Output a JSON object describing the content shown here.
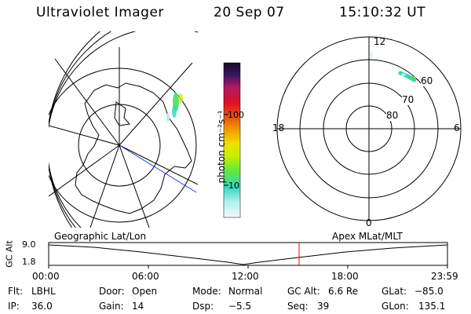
{
  "header": {
    "title": "Ultraviolet Imager",
    "date": "20 Sep 07",
    "time": "15:10:32 UT"
  },
  "colorbar": {
    "label": "photon cm⁻²s⁻¹",
    "ticks": [
      "100",
      "10"
    ],
    "colors": [
      "#1a0a2a",
      "#3a1660",
      "#b01860",
      "#e01020",
      "#e85a10",
      "#f0a000",
      "#f0e000",
      "#c8f000",
      "#60e840",
      "#30d8b8",
      "#b0f0f0",
      "#f4f8f8"
    ]
  },
  "polar_plot": {
    "mlt_labels": [
      "12",
      "6",
      "0",
      "18"
    ],
    "mlat_labels": [
      "60",
      "70",
      "80"
    ]
  },
  "timeline": {
    "left_label": "Geographic Lat/Lon",
    "right_label": "Apex MLat/MLT",
    "axis_label": "GC Alt",
    "ytick_top": "9.0",
    "ytick_bottom": "1.8",
    "xticks": [
      "00:00",
      "06:00",
      "12:00",
      "18:00",
      "23:59"
    ],
    "marker_color": "#ff0000"
  },
  "info": {
    "flt_label": "Flt:",
    "flt_value": "LBHL",
    "ip_label": "IP:",
    "ip_value": "36.0",
    "door_label": "Door:",
    "door_value": "Open",
    "gain_label": "Gain:",
    "gain_value": "14",
    "mode_label": "Mode:",
    "mode_value": "Normal",
    "dsp_label": "Dsp:",
    "dsp_value": "−5.5",
    "gcalt_label": "GC Alt:",
    "gcalt_value": "6.6 Re",
    "seq_label": "Seq:",
    "seq_value": "39",
    "glat_label": "GLat:",
    "glat_value": "−85.0",
    "glon_label": "GLon:",
    "glon_value": "135.1"
  }
}
